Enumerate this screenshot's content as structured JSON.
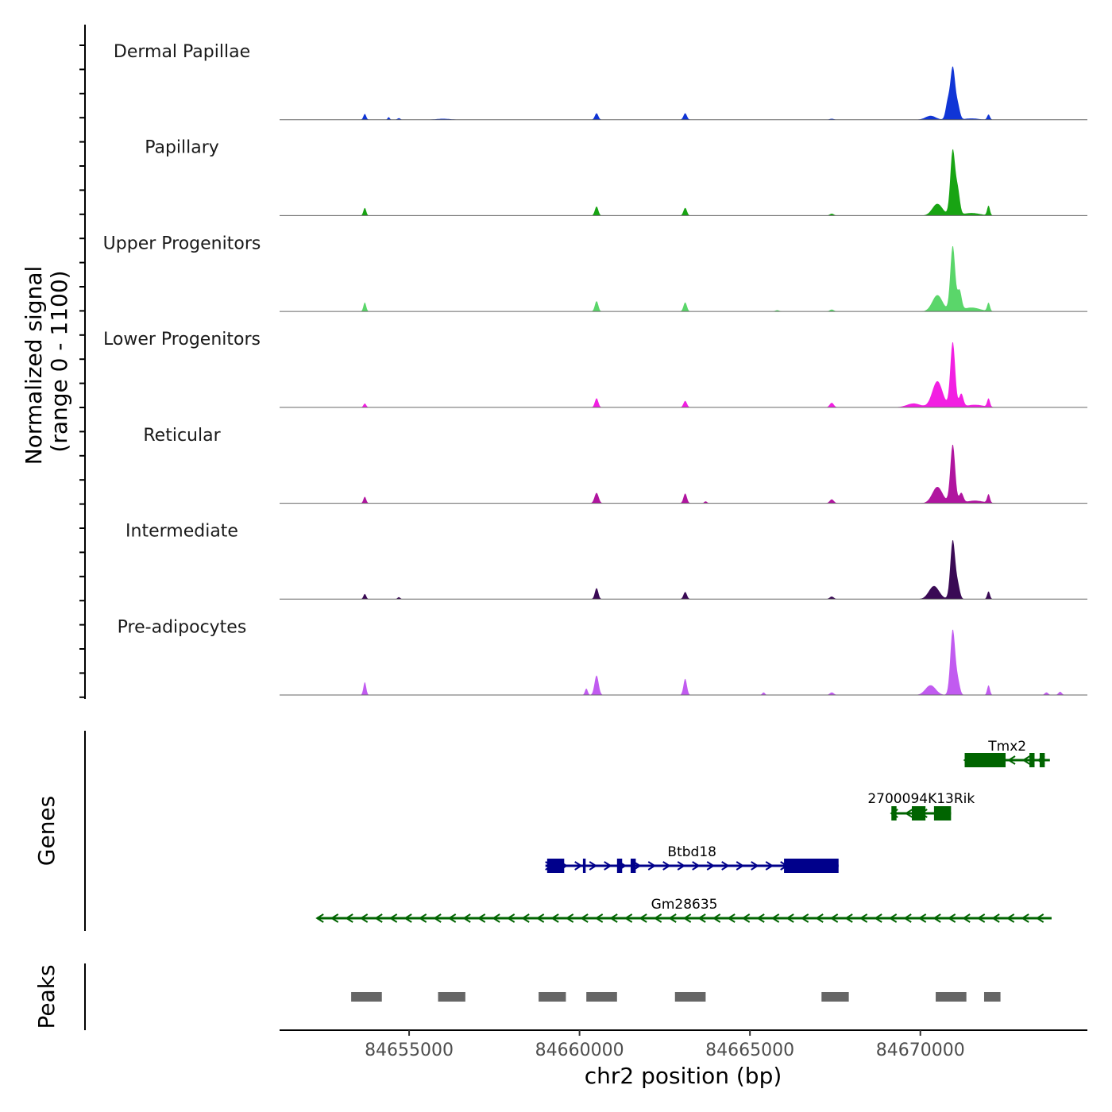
{
  "chart_data": {
    "type": "area",
    "chromosome": "chr2",
    "xlim": [
      84651200,
      84674900
    ],
    "x_ticks": [
      84655000,
      84660000,
      84665000,
      84670000
    ],
    "x_tick_labels": [
      "84655000",
      "84660000",
      "84665000",
      "84670000"
    ],
    "xlabel": "chr2 position (bp)",
    "ylabel_line1": "Normalized signal",
    "ylabel_line2": "(range 0 - 1100)",
    "ylim": [
      0,
      1100
    ],
    "genes_axis_label": "Genes",
    "peaks_axis_label": "Peaks",
    "tracks": [
      {
        "name": "Dermal Papillae",
        "color": "#1035d6",
        "peaks": [
          [
            84653700,
            90,
            40
          ],
          [
            84654400,
            40,
            30
          ],
          [
            84654700,
            25,
            40
          ],
          [
            84660500,
            100,
            50
          ],
          [
            84663100,
            100,
            50
          ],
          [
            84670300,
            60,
            150
          ],
          [
            84670800,
            250,
            60
          ],
          [
            84670950,
            800,
            70
          ],
          [
            84671100,
            200,
            60
          ],
          [
            84672000,
            80,
            40
          ],
          [
            84656000,
            15,
            200
          ],
          [
            84667400,
            15,
            60
          ],
          [
            84671500,
            20,
            200
          ]
        ]
      },
      {
        "name": "Papillary",
        "color": "#18a413",
        "peaks": [
          [
            84653700,
            120,
            40
          ],
          [
            84660500,
            140,
            50
          ],
          [
            84663100,
            120,
            50
          ],
          [
            84667400,
            30,
            60
          ],
          [
            84670500,
            180,
            150
          ],
          [
            84670950,
            1000,
            70
          ],
          [
            84671100,
            350,
            60
          ],
          [
            84672000,
            150,
            40
          ],
          [
            84671500,
            40,
            250
          ]
        ]
      },
      {
        "name": "Upper Progenitors",
        "color": "#5ad66a",
        "peaks": [
          [
            84653700,
            140,
            40
          ],
          [
            84660500,
            160,
            50
          ],
          [
            84663100,
            140,
            50
          ],
          [
            84665800,
            20,
            60
          ],
          [
            84667400,
            30,
            60
          ],
          [
            84670500,
            250,
            150
          ],
          [
            84670950,
            1000,
            70
          ],
          [
            84671150,
            300,
            60
          ],
          [
            84672000,
            130,
            40
          ],
          [
            84671500,
            60,
            250
          ]
        ]
      },
      {
        "name": "Lower Progenitors",
        "color": "#f21fe2",
        "peaks": [
          [
            84653700,
            60,
            40
          ],
          [
            84660500,
            140,
            50
          ],
          [
            84663100,
            100,
            50
          ],
          [
            84667400,
            70,
            60
          ],
          [
            84670500,
            400,
            150
          ],
          [
            84670950,
            1000,
            70
          ],
          [
            84671200,
            200,
            60
          ],
          [
            84672000,
            130,
            40
          ],
          [
            84669800,
            60,
            200
          ],
          [
            84671600,
            40,
            250
          ]
        ]
      },
      {
        "name": "Reticular",
        "color": "#b0159f",
        "peaks": [
          [
            84653700,
            100,
            40
          ],
          [
            84660500,
            160,
            60
          ],
          [
            84663100,
            150,
            50
          ],
          [
            84663700,
            30,
            40
          ],
          [
            84667400,
            60,
            60
          ],
          [
            84670500,
            250,
            150
          ],
          [
            84670950,
            900,
            70
          ],
          [
            84671200,
            150,
            60
          ],
          [
            84672000,
            130,
            40
          ],
          [
            84671600,
            40,
            250
          ]
        ]
      },
      {
        "name": "Intermediate",
        "color": "#3a0a55",
        "peaks": [
          [
            84653700,
            80,
            40
          ],
          [
            84654700,
            30,
            40
          ],
          [
            84660500,
            170,
            50
          ],
          [
            84663100,
            110,
            50
          ],
          [
            84667400,
            40,
            60
          ],
          [
            84670400,
            200,
            150
          ],
          [
            84670950,
            900,
            70
          ],
          [
            84671100,
            200,
            60
          ],
          [
            84672000,
            120,
            40
          ]
        ]
      },
      {
        "name": "Pre-adipocytes",
        "color": "#c15bf0",
        "peaks": [
          [
            84653700,
            200,
            40
          ],
          [
            84660200,
            100,
            40
          ],
          [
            84660500,
            300,
            60
          ],
          [
            84663100,
            250,
            50
          ],
          [
            84665400,
            40,
            40
          ],
          [
            84667400,
            40,
            60
          ],
          [
            84670300,
            150,
            150
          ],
          [
            84670950,
            1000,
            70
          ],
          [
            84671100,
            200,
            60
          ],
          [
            84672000,
            150,
            40
          ],
          [
            84673700,
            40,
            50
          ],
          [
            84674100,
            50,
            50
          ]
        ]
      }
    ],
    "genes": [
      {
        "name": "Tmx2",
        "strand": "-",
        "color": "#006400",
        "start": 84671300,
        "end": 84673800,
        "exons": [
          [
            84671300,
            84672500
          ],
          [
            84673200,
            84673350
          ],
          [
            84673500,
            84673650
          ]
        ]
      },
      {
        "name": "2700094K13Rik",
        "strand": "-",
        "color": "#006400",
        "start": 84669150,
        "end": 84670900,
        "exons": [
          [
            84669150,
            84669300
          ],
          [
            84669750,
            84670150
          ],
          [
            84670400,
            84670900
          ]
        ]
      },
      {
        "name": "Btbd18",
        "strand": "+",
        "color": "#00008b",
        "start": 84659000,
        "end": 84667600,
        "exons": [
          [
            84659050,
            84659550
          ],
          [
            84660100,
            84660180
          ],
          [
            84661100,
            84661250
          ],
          [
            84661500,
            84661650
          ],
          [
            84666000,
            84667600
          ]
        ]
      },
      {
        "name": "Gm28635",
        "strand": "-",
        "color": "#006400",
        "start": 84652300,
        "end": 84673850,
        "exons": []
      }
    ],
    "peak_regions": [
      [
        84653300,
        84654200
      ],
      [
        84655850,
        84656650
      ],
      [
        84658800,
        84659600
      ],
      [
        84660200,
        84661100
      ],
      [
        84662800,
        84663700
      ],
      [
        84667100,
        84667900
      ],
      [
        84670450,
        84671350
      ],
      [
        84671870,
        84672350
      ]
    ]
  }
}
